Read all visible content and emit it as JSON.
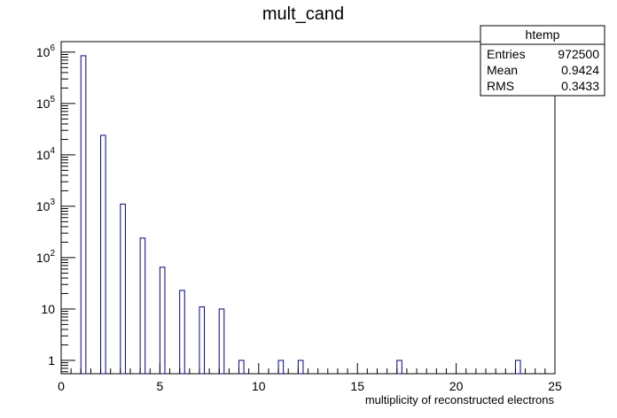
{
  "chart_data": {
    "type": "bar",
    "title": "mult_cand",
    "xlabel": "multiplicity of reconstructed electrons",
    "ylabel": "",
    "xlim": [
      0,
      25
    ],
    "ylim": [
      0.55,
      1600000
    ],
    "yscale": "log",
    "bin_width": 0.25,
    "x_major_ticks": [
      "0",
      "5",
      "10",
      "15",
      "20",
      "25"
    ],
    "y_ticks": [
      {
        "value": 1,
        "base": "1",
        "exp": ""
      },
      {
        "value": 10,
        "base": "10",
        "exp": ""
      },
      {
        "value": 100,
        "base": "10",
        "exp": "2"
      },
      {
        "value": 1000,
        "base": "10",
        "exp": "3"
      },
      {
        "value": 10000,
        "base": "10",
        "exp": "4"
      },
      {
        "value": 100000,
        "base": "10",
        "exp": "5"
      },
      {
        "value": 1000000,
        "base": "10",
        "exp": "6"
      }
    ],
    "x": [
      1,
      2,
      3,
      4,
      5,
      6,
      7,
      8,
      9,
      11,
      12,
      17,
      23
    ],
    "values": [
      850000,
      24000,
      1100,
      240,
      65,
      23,
      11,
      10,
      1,
      1,
      1,
      1,
      1
    ],
    "line_color": "#000099",
    "stats": {
      "name": "htemp",
      "rows": [
        {
          "label": "Entries",
          "value": "972500"
        },
        {
          "label": "Mean",
          "value": "0.9424"
        },
        {
          "label": "RMS",
          "value": "0.3433"
        }
      ]
    }
  }
}
